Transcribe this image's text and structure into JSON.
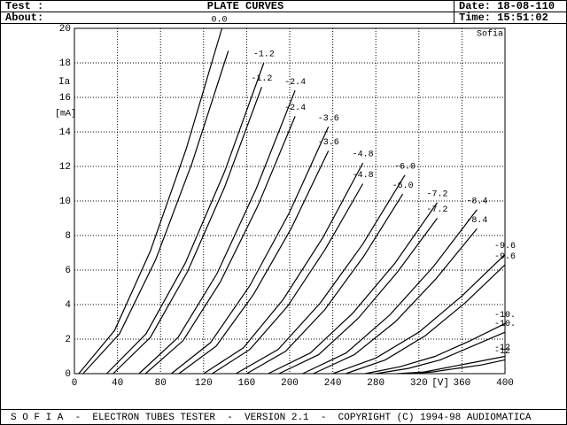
{
  "header": {
    "test_label": "Test :",
    "about_label": "About:",
    "title": "PLATE CURVES",
    "date": "Date: 18-08-110",
    "time": "Time: 15:51:02"
  },
  "footer": {
    "text": "S O F I A  -  ELECTRON TUBES TESTER  -  VERSION 2.1  -  COPYRIGHT (C) 1994-98 AUDIOMATICA"
  },
  "chart_data": {
    "type": "line",
    "corner_text": "Sofia",
    "y_label": "Ia",
    "y_unit": "[mA]",
    "x_unit": "[V]",
    "grid": true,
    "xlim": [
      0,
      400
    ],
    "ylim": [
      0,
      20
    ],
    "xticks": [
      0,
      40,
      80,
      120,
      160,
      200,
      240,
      280,
      320,
      360,
      400
    ],
    "yticks": [
      0,
      2,
      4,
      6,
      8,
      10,
      12,
      14,
      16,
      18,
      20
    ],
    "series": [
      {
        "name": "0.0",
        "color": "#000000",
        "x": [
          4,
          37.3,
          70.5,
          103.8,
          137
        ],
        "values": [
          0,
          2.5,
          7.1,
          13,
          20
        ]
      },
      {
        "color": "#000000",
        "x": [
          8,
          41.8,
          75.5,
          109.3,
          143
        ],
        "values": [
          0,
          2.3,
          6.6,
          12.2,
          18.7
        ]
      },
      {
        "name": "-1.2",
        "color": "#000000",
        "x": [
          30,
          66.5,
          103,
          139.5,
          176
        ],
        "values": [
          0,
          2.3,
          6.4,
          11.7,
          18
        ]
      },
      {
        "name": "-1.2",
        "color": "#000000",
        "x": [
          36,
          70.5,
          105,
          139.5,
          174
        ],
        "values": [
          0,
          2.1,
          5.9,
          10.8,
          16.6
        ]
      },
      {
        "name": "-2.4",
        "color": "#000000",
        "x": [
          60,
          96.3,
          132.5,
          168.8,
          205
        ],
        "values": [
          0,
          2.1,
          5.8,
          10.7,
          16.4
        ]
      },
      {
        "name": "-2.4",
        "color": "#000000",
        "x": [
          66,
          100.8,
          135.5,
          170.3,
          205
        ],
        "values": [
          0,
          1.9,
          5.3,
          9.7,
          14.9
        ]
      },
      {
        "name": "-3.6",
        "color": "#000000",
        "x": [
          90,
          126.5,
          163,
          199.5,
          236
        ],
        "values": [
          0,
          1.8,
          5.1,
          9.3,
          14.3
        ]
      },
      {
        "name": "-3.6",
        "color": "#000000",
        "x": [
          97,
          131.8,
          166.5,
          201.3,
          236
        ],
        "values": [
          0,
          1.6,
          4.6,
          8.4,
          12.9
        ]
      },
      {
        "name": "-4.8",
        "color": "#000000",
        "x": [
          120,
          157,
          194,
          231,
          268
        ],
        "values": [
          0,
          1.5,
          4.3,
          7.9,
          12.2
        ]
      },
      {
        "name": "-4.8",
        "color": "#000000",
        "x": [
          128,
          163,
          198,
          233,
          268
        ],
        "values": [
          0,
          1.4,
          3.9,
          7.2,
          11
        ]
      },
      {
        "name": "-6.0",
        "color": "#000000",
        "x": [
          150,
          189.3,
          228.5,
          267.8,
          307
        ],
        "values": [
          0,
          1.4,
          4.1,
          7.5,
          11.5
        ]
      },
      {
        "name": "-6.0",
        "color": "#000000",
        "x": [
          160,
          196.3,
          232.5,
          268.8,
          305
        ],
        "values": [
          0,
          1.3,
          3.7,
          6.8,
          10.4
        ]
      },
      {
        "name": "-7.2",
        "color": "#000000",
        "x": [
          180,
          219.3,
          258.5,
          297.8,
          337
        ],
        "values": [
          0,
          1.2,
          3.5,
          6.4,
          9.9
        ]
      },
      {
        "name": "-7.2",
        "color": "#000000",
        "x": [
          190,
          226.8,
          263.5,
          300.3,
          337
        ],
        "values": [
          0,
          1.1,
          3.2,
          5.9,
          9
        ]
      },
      {
        "name": "-8.4",
        "color": "#000000",
        "x": [
          212,
          252.5,
          293,
          333.5,
          374
        ],
        "values": [
          0,
          1.2,
          3.4,
          6.2,
          9.5
        ]
      },
      {
        "name": "-8.4",
        "color": "#000000",
        "x": [
          222,
          260,
          298,
          336,
          374
        ],
        "values": [
          0,
          1.1,
          3,
          5.5,
          8.4
        ]
      },
      {
        "name": "-9.6",
        "color": "#000000",
        "x": [
          240,
          280,
          320,
          360,
          400
        ],
        "values": [
          0,
          0.9,
          2.4,
          4.5,
          6.9
        ]
      },
      {
        "name": "-9.6",
        "color": "#000000",
        "x": [
          252,
          289,
          326,
          363,
          400
        ],
        "values": [
          0,
          0.8,
          2.2,
          4.1,
          6.3
        ]
      },
      {
        "name": "-10.",
        "color": "#000000",
        "x": [
          270,
          302.5,
          335,
          367.5,
          400
        ],
        "values": [
          0,
          0.4,
          1,
          1.9,
          2.9
        ]
      },
      {
        "name": "-10.",
        "color": "#000000",
        "x": [
          280,
          310,
          340,
          370,
          400
        ],
        "values": [
          0,
          0.3,
          0.8,
          1.6,
          2.4
        ]
      },
      {
        "name": "-12",
        "color": "#000000",
        "x": [
          300,
          325,
          350,
          375,
          400
        ],
        "values": [
          0,
          0.1,
          0.4,
          0.7,
          1
        ]
      },
      {
        "name": "-12",
        "color": "#000000",
        "x": [
          310,
          332.5,
          355,
          377.5,
          400
        ],
        "values": [
          0,
          0.1,
          0.3,
          0.5,
          0.8
        ]
      }
    ]
  }
}
